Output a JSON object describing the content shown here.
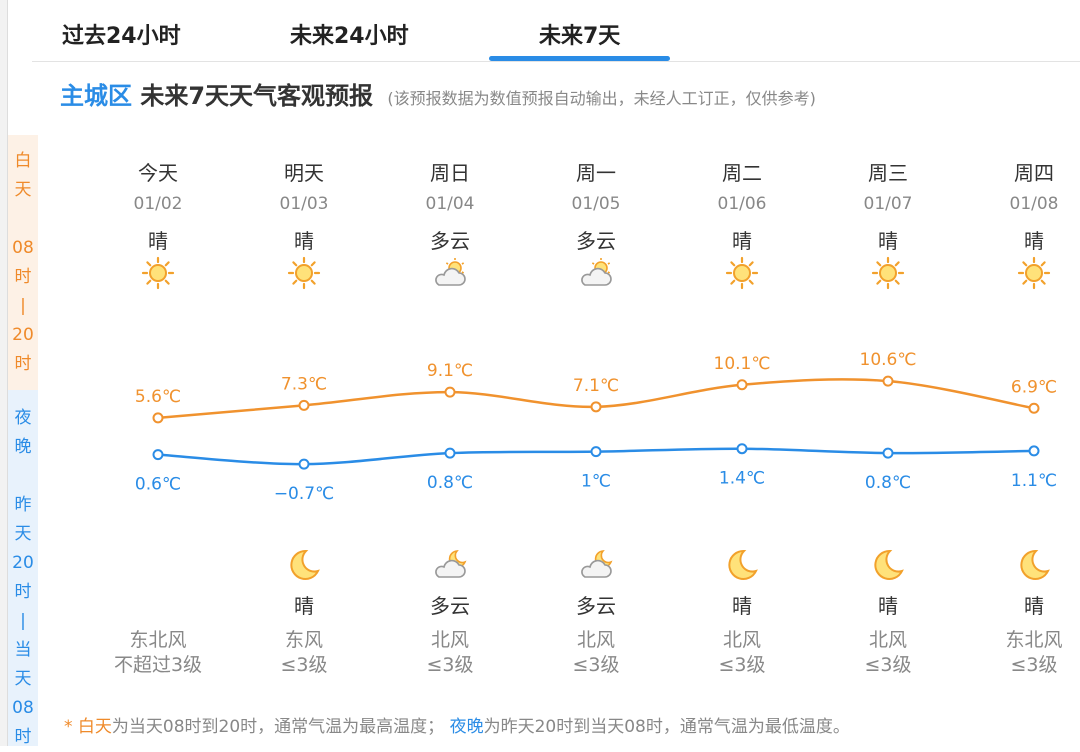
{
  "tabs": [
    "过去24小时",
    "未来24小时",
    "未来7天"
  ],
  "active_tab": 2,
  "title": {
    "area": "主城区",
    "main": "未来7天天气客观预报",
    "note": "(该预报数据为数值预报自动输出，未经人工订正，仅供参考)"
  },
  "side": {
    "day": [
      "白",
      "天",
      "",
      "08",
      "时",
      "|",
      "20",
      "时"
    ],
    "night": [
      "夜",
      "晚",
      "",
      "昨",
      "天",
      "20",
      "时",
      "|",
      "当",
      "天",
      "08",
      "时"
    ]
  },
  "colors": {
    "high": "#f0922e",
    "low": "#2a8ce6"
  },
  "days": [
    {
      "week": "今天",
      "date": "01/02",
      "day_wx": "晴",
      "day_icon": "sun-icon",
      "high": "5.6℃",
      "low": "0.6℃",
      "night_wx": "",
      "night_icon": "",
      "wind_dir": "东北风",
      "wind_lvl": "不超过3级"
    },
    {
      "week": "明天",
      "date": "01/03",
      "day_wx": "晴",
      "day_icon": "sun-icon",
      "high": "7.3℃",
      "low": "−0.7℃",
      "night_wx": "晴",
      "night_icon": "moon-icon",
      "wind_dir": "东风",
      "wind_lvl": "≤3级"
    },
    {
      "week": "周日",
      "date": "01/04",
      "day_wx": "多云",
      "day_icon": "partly-cloudy-icon",
      "high": "9.1℃",
      "low": "0.8℃",
      "night_wx": "多云",
      "night_icon": "cloudy-night-icon",
      "wind_dir": "北风",
      "wind_lvl": "≤3级"
    },
    {
      "week": "周一",
      "date": "01/05",
      "day_wx": "多云",
      "day_icon": "partly-cloudy-icon",
      "high": "7.1℃",
      "low": "1℃",
      "night_wx": "多云",
      "night_icon": "cloudy-night-icon",
      "wind_dir": "北风",
      "wind_lvl": "≤3级"
    },
    {
      "week": "周二",
      "date": "01/06",
      "day_wx": "晴",
      "day_icon": "sun-icon",
      "high": "10.1℃",
      "low": "1.4℃",
      "night_wx": "晴",
      "night_icon": "moon-icon",
      "wind_dir": "北风",
      "wind_lvl": "≤3级"
    },
    {
      "week": "周三",
      "date": "01/07",
      "day_wx": "晴",
      "day_icon": "sun-icon",
      "high": "10.6℃",
      "low": "0.8℃",
      "night_wx": "晴",
      "night_icon": "moon-icon",
      "wind_dir": "北风",
      "wind_lvl": "≤3级"
    },
    {
      "week": "周四",
      "date": "01/08",
      "day_wx": "晴",
      "day_icon": "sun-icon",
      "high": "6.9℃",
      "low": "1.1℃",
      "night_wx": "晴",
      "night_icon": "moon-icon",
      "wind_dir": "东北风",
      "wind_lvl": "≤3级"
    }
  ],
  "chart_data": {
    "type": "line",
    "categories": [
      "01/02",
      "01/03",
      "01/04",
      "01/05",
      "01/06",
      "01/07",
      "01/08"
    ],
    "series": [
      {
        "values": [
          5.6,
          7.3,
          9.1,
          7.1,
          10.1,
          10.6,
          6.9
        ]
      },
      {
        "values": [
          0.6,
          -0.7,
          0.8,
          1,
          1.4,
          0.8,
          1.1
        ]
      }
    ]
  },
  "footer": {
    "star": "* ",
    "day": "白天",
    "day_text": "为当天08时到20时，通常气温为最高温度；",
    "night": "夜晚",
    "night_text": "为昨天20时到当天08时，通常气温为最低温度。"
  }
}
